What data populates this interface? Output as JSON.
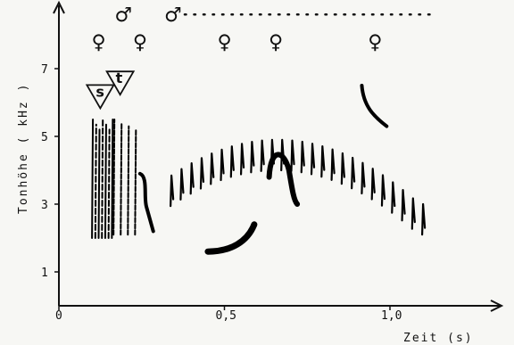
{
  "chart_data": {
    "type": "spectrogram",
    "title": "",
    "xlabel": "Zeit (s)",
    "ylabel": "Tonhöhe ( kHz )",
    "xlim": [
      0,
      1.4
    ],
    "ylim": [
      0,
      9
    ],
    "x_ticks": [
      {
        "value": 0,
        "label": "0"
      },
      {
        "value": 0.5,
        "label": "0,5"
      },
      {
        "value": 1.0,
        "label": "1,0"
      }
    ],
    "y_ticks": [
      {
        "value": 1,
        "label": "1"
      },
      {
        "value": 3,
        "label": "3"
      },
      {
        "value": 5,
        "label": "5"
      },
      {
        "value": 7,
        "label": "7"
      }
    ],
    "markers": [
      {
        "type": "triangle",
        "label": "s",
        "x": 0.125,
        "y": 6.2
      },
      {
        "type": "triangle",
        "label": "t",
        "x": 0.185,
        "y": 6.6
      }
    ],
    "sex_symbols": [
      {
        "symbol": "♀",
        "x": 0.12,
        "y": 7.8
      },
      {
        "symbol": "♂",
        "x": 0.19,
        "y": 8.6
      },
      {
        "symbol": "♀",
        "x": 0.245,
        "y": 7.8
      },
      {
        "symbol": "♂",
        "x": 0.34,
        "y": 8.6
      },
      {
        "symbol": "♀",
        "x": 0.5,
        "y": 7.8
      },
      {
        "symbol": "♀",
        "x": 0.655,
        "y": 7.8
      },
      {
        "symbol": "♀",
        "x": 0.955,
        "y": 7.8
      }
    ],
    "dotted_line": {
      "x_start": 0.38,
      "x_end": 1.12,
      "y": 8.6
    },
    "pulse_train": {
      "x_start": 0.34,
      "x_end": 1.1,
      "peak_x": 0.66,
      "top_min": 3.0,
      "top_max": 4.9,
      "count": 26
    },
    "s_pulses": {
      "x_start": 0.1,
      "x_end": 0.16,
      "count": 7,
      "low": 2.0,
      "high": 5.5
    },
    "t_pulses": {
      "x_start": 0.165,
      "x_end": 0.23,
      "count": 4,
      "low": 2.1,
      "high": 5.5
    }
  }
}
